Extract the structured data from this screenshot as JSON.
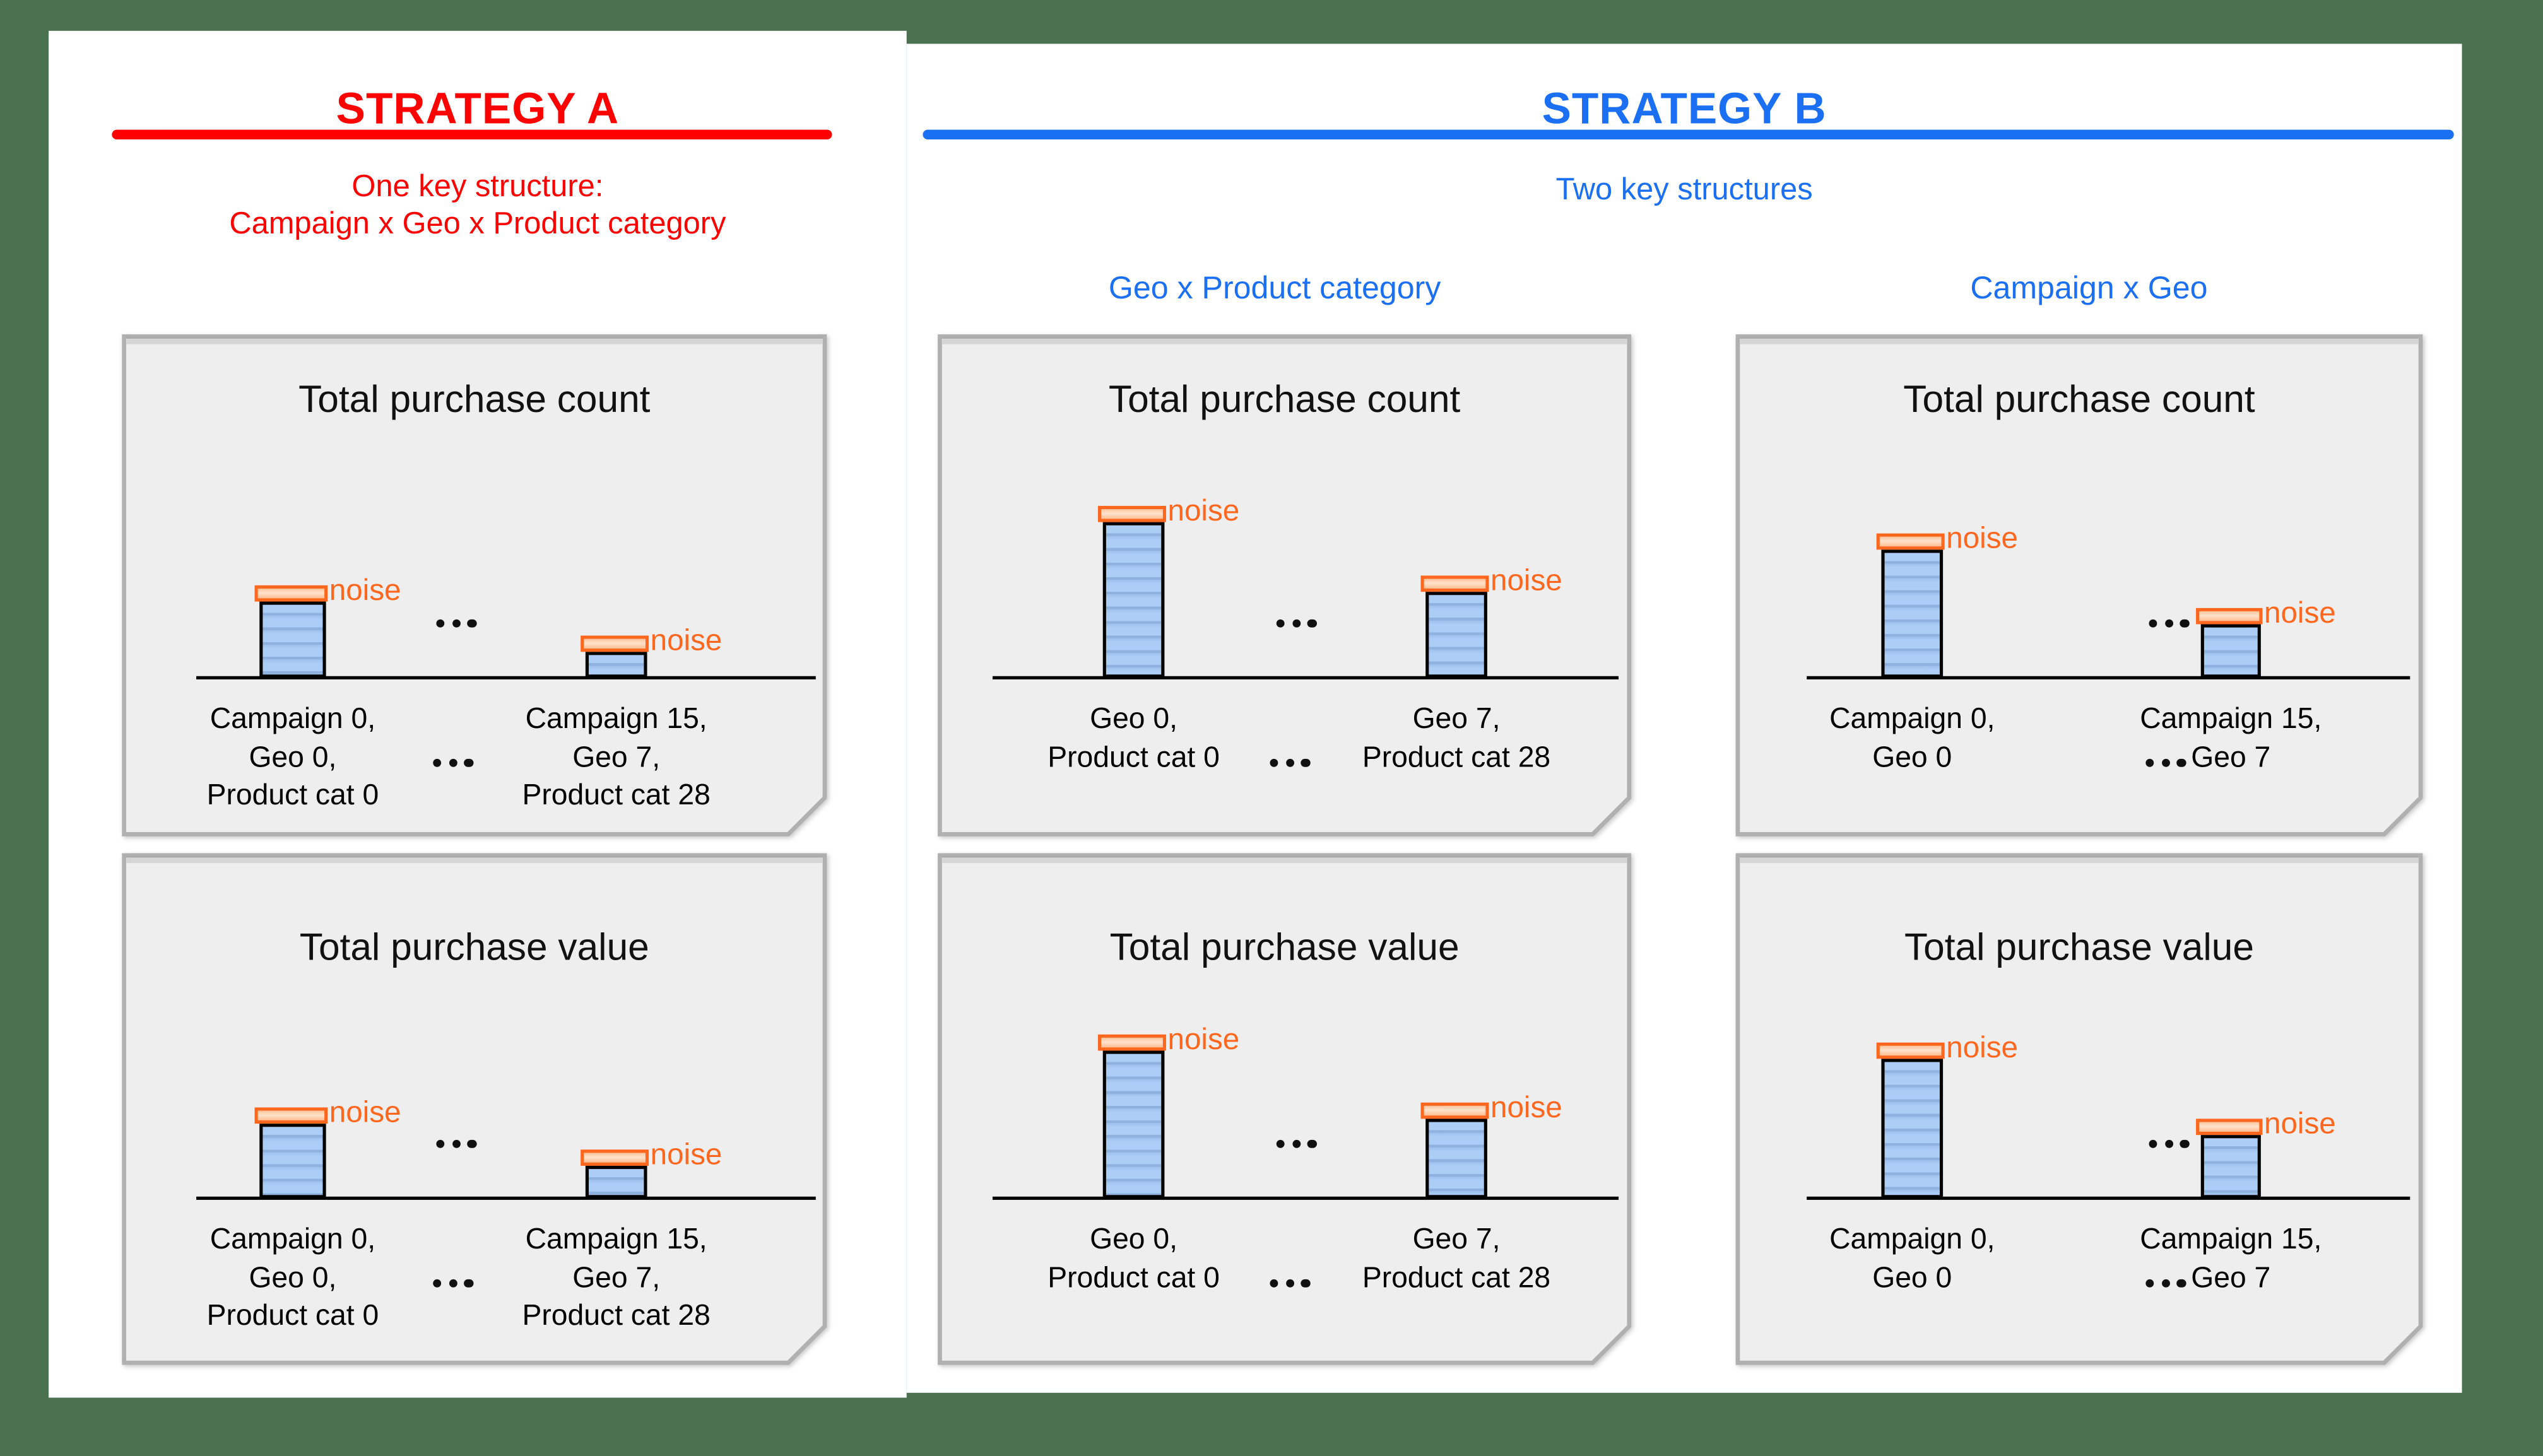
{
  "colors": {
    "background": "#4a7150",
    "panel": "#ffffff",
    "strategy_a_accent": "#fe0000",
    "strategy_b_accent": "#1a6ff2",
    "noise_accent": "#ff671f",
    "note_fill": "#eeeeee",
    "note_border": "#b0b0b0",
    "bar_fill": "#abcdf6",
    "bar_stripe": "#8fb1e0",
    "axis": "#000000"
  },
  "left_panel": {
    "title": "STRATEGY A",
    "subtitle_lines": [
      "One key structure:",
      "Campaign x Geo x Product category"
    ]
  },
  "right_panel": {
    "title": "STRATEGY B",
    "subtitle": "Two key structures",
    "column_headers": [
      "Geo x Product category",
      "Campaign x Geo"
    ]
  },
  "noise_label": "noise",
  "ellipsis": "...",
  "boxes": [
    {
      "column": "strategy-a",
      "title": "Total purchase count",
      "bars": [
        {
          "labels": [
            "Campaign 0,",
            "Geo 0,",
            "Product cat 0"
          ],
          "height": 47
        },
        {
          "labels": [
            "Campaign 15,",
            "Geo 7,",
            "Product cat 28"
          ],
          "height": 16
        }
      ]
    },
    {
      "column": "strategy-a",
      "title": "Total purchase value",
      "bars": [
        {
          "labels": [
            "Campaign 0,",
            "Geo 0,",
            "Product cat 0"
          ],
          "height": 46
        },
        {
          "labels": [
            "Campaign 15,",
            "Geo 7,",
            "Product cat 28"
          ],
          "height": 20
        }
      ]
    },
    {
      "column": "geo-product",
      "title": "Total purchase count",
      "bars": [
        {
          "labels": [
            "Geo 0,",
            "Product cat 0"
          ],
          "height": 96
        },
        {
          "labels": [
            "Geo 7,",
            "Product cat 28"
          ],
          "height": 53
        }
      ]
    },
    {
      "column": "geo-product",
      "title": "Total purchase value",
      "bars": [
        {
          "labels": [
            "Geo 0,",
            "Product cat 0"
          ],
          "height": 91
        },
        {
          "labels": [
            "Geo 7,",
            "Product cat 28"
          ],
          "height": 49
        }
      ]
    },
    {
      "column": "campaign-geo",
      "title": "Total purchase count",
      "bars": [
        {
          "labels": [
            "Campaign 0,",
            "Geo 0"
          ],
          "height": 79
        },
        {
          "labels": [
            "Campaign 15,",
            "Geo 7"
          ],
          "height": 33
        }
      ]
    },
    {
      "column": "campaign-geo",
      "title": "Total purchase value",
      "bars": [
        {
          "labels": [
            "Campaign 0,",
            "Geo 0"
          ],
          "height": 86
        },
        {
          "labels": [
            "Campaign 15,",
            "Geo 7"
          ],
          "height": 39
        }
      ]
    }
  ]
}
